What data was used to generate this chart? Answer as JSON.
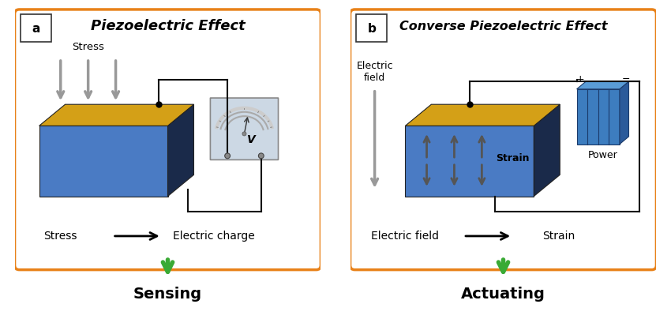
{
  "panel_a_title": "Piezoelectric Effect",
  "panel_b_title": "Converse Piezoelectric Effect",
  "panel_a_label": "a",
  "panel_b_label": "b",
  "panel_a_caption_left": "Stress",
  "panel_a_caption_right": "Electric charge",
  "panel_b_caption_left": "Electric field",
  "panel_b_caption_right": "Strain",
  "panel_a_bottom": "Sensing",
  "panel_b_bottom": "Actuating",
  "bg_color": "#ffffff",
  "box_edge_color": "#E8821A",
  "box_face_color": "#ffffff",
  "gold_color": "#D4A017",
  "blue_color": "#4A7BC4",
  "dark_side_color": "#1a2a4a",
  "arrow_gray": "#999999",
  "arrow_dark": "#555555",
  "green_arrow": "#3aaa35",
  "power_blue": "#3d7dbf",
  "power_blue_light": "#5a9cd6",
  "meter_bg": "#ccd8e4",
  "wire_color": "#111111"
}
